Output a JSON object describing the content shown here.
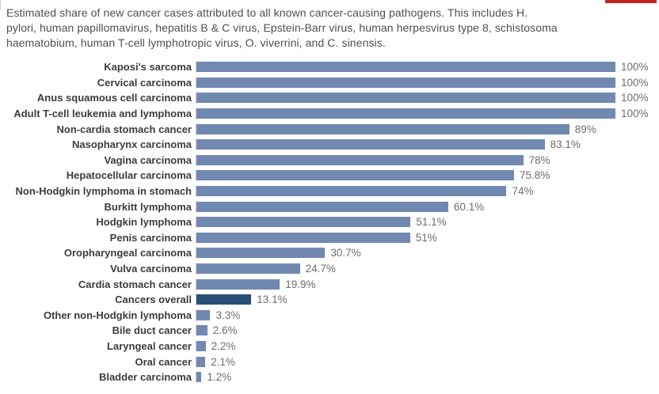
{
  "page": {
    "title_lines": [
      "Estimated share of new cancer cases attributed to all known cancer-causing pathogens. This includes H.",
      "pylori, human papillomavirus, hepatitis B & C virus, Epstein-Barr virus, human herpesvirus type 8, schistosoma",
      "haematobium, human T-cell lymphotropic virus, O. viverrini, and C. sinensis."
    ]
  },
  "colors": {
    "bar": "#7188b1",
    "bar_highlight": "#2b5078",
    "axis": "#cccccc",
    "label": "#3c3c3c",
    "value": "#6d6d6d",
    "title": "#4f4f4f",
    "accent_strip": "#c32321"
  },
  "chart_data": {
    "type": "bar",
    "orientation": "horizontal",
    "title": "Estimated share of new cancer cases attributed to all known cancer-causing pathogens. This includes H. pylori, human papillomavirus, hepatitis B & C virus, Epstein-Barr virus, human herpesvirus type 8, schistosoma haematobium, human T-cell lymphotropic virus, O. viverrini, and C. sinensis.",
    "xlabel": "",
    "ylabel": "",
    "unit": "%",
    "xlim": [
      0,
      100
    ],
    "grid": false,
    "legend": false,
    "highlight_category": "Cancers overall",
    "categories": [
      "Kaposi's sarcoma",
      "Cervical carcinoma",
      "Anus squamous cell carcinoma",
      "Adult T-cell leukemia and lymphoma",
      "Non-cardia stomach cancer",
      "Nasopharynx carcinoma",
      "Vagina carcinoma",
      "Hepatocellular carcinoma",
      "Non-Hodgkin lymphoma in stomach",
      "Burkitt lymphoma",
      "Hodgkin lymphoma",
      "Penis carcinoma",
      "Oropharyngeal carcinoma",
      "Vulva carcinoma",
      "Cardia stomach cancer",
      "Cancers overall",
      "Other non-Hodgkin lymphoma",
      "Bile duct cancer",
      "Laryngeal cancer",
      "Oral cancer",
      "Bladder carcinoma"
    ],
    "values": [
      100,
      100,
      100,
      100,
      89,
      83.1,
      78,
      75.8,
      74,
      60.1,
      51.1,
      51,
      30.7,
      24.7,
      19.9,
      13.1,
      3.3,
      2.6,
      2.2,
      2.1,
      1.2
    ],
    "value_labels": [
      "100%",
      "100%",
      "100%",
      "100%",
      "89%",
      "83.1%",
      "78%",
      "75.8%",
      "74%",
      "60.1%",
      "51.1%",
      "51%",
      "30.7%",
      "24.7%",
      "19.9%",
      "13.1%",
      "3.3%",
      "2.6%",
      "2.2%",
      "2.1%",
      "1.2%"
    ]
  }
}
